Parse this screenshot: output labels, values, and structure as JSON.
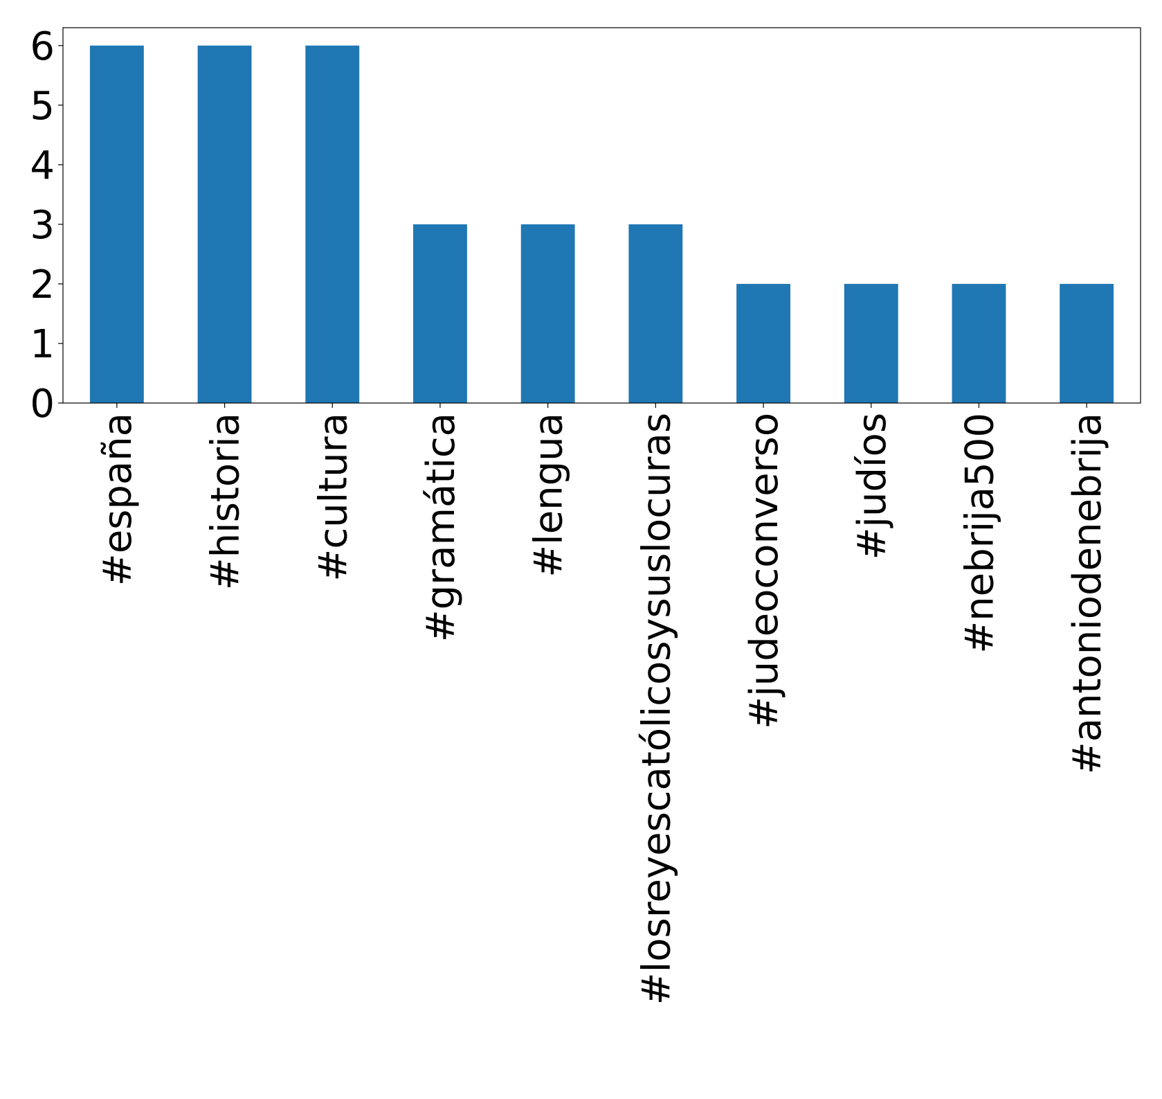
{
  "chart_data": {
    "type": "bar",
    "title": "",
    "xlabel": "",
    "ylabel": "",
    "categories": [
      "#españa",
      "#historia",
      "#cultura",
      "#gramática",
      "#lengua",
      "#losreyescatólicosysuslocuras",
      "#judeoconverso",
      "#judíos",
      "#nebrija500",
      "#antoniodenebrija"
    ],
    "values": [
      6,
      6,
      6,
      3,
      3,
      3,
      2,
      2,
      2,
      2
    ],
    "ylim": [
      0,
      6.3
    ],
    "yticks": [
      0,
      1,
      2,
      3,
      4,
      5,
      6
    ],
    "ytick_labels": [
      "0",
      "1",
      "2",
      "3",
      "4",
      "5",
      "6"
    ],
    "grid": false,
    "legend": "none",
    "colors": {
      "bar": "#1f77b4",
      "axis": "#000000"
    }
  }
}
